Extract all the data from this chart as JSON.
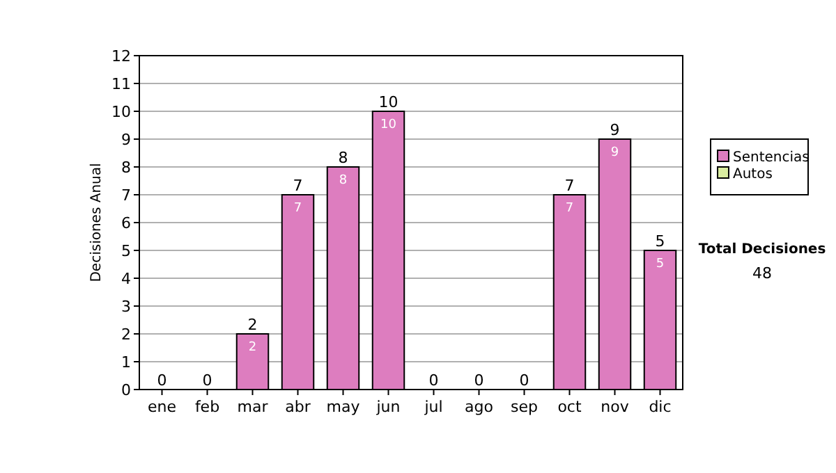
{
  "chart_data": {
    "type": "bar",
    "ylabel": "Decisiones Anual",
    "categories": [
      "ene",
      "feb",
      "mar",
      "abr",
      "may",
      "jun",
      "jul",
      "ago",
      "sep",
      "oct",
      "nov",
      "dic"
    ],
    "series": [
      {
        "name": "Sentencias",
        "color": "#dd7dbf",
        "values": [
          0,
          0,
          2,
          7,
          8,
          10,
          0,
          0,
          0,
          7,
          9,
          5
        ],
        "value_labels": [
          null,
          null,
          "2",
          "7",
          "8",
          "10",
          null,
          null,
          null,
          "7",
          "9",
          "5"
        ]
      },
      {
        "name": "Autos",
        "color": "#d9eca0",
        "values": [
          0,
          0,
          0,
          0,
          0,
          0,
          0,
          0,
          0,
          0,
          0,
          0
        ]
      }
    ],
    "stacked": true,
    "totals": [
      "0",
      "0",
      "2",
      "7",
      "8",
      "10",
      "0",
      "0",
      "0",
      "7",
      "9",
      "5"
    ],
    "ylim": [
      0,
      12
    ],
    "yticks": [
      0,
      1,
      2,
      3,
      4,
      5,
      6,
      7,
      8,
      9,
      10,
      11,
      12
    ],
    "grid": "y",
    "legend": "right",
    "annotations": [
      "Total Decisiones",
      "48"
    ]
  }
}
